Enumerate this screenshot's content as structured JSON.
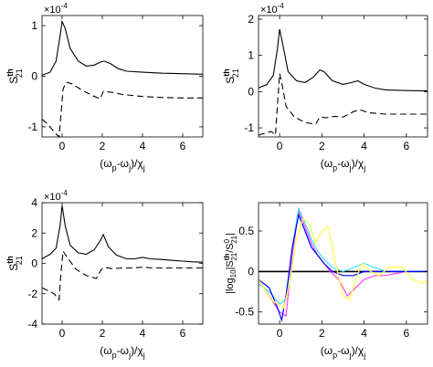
{
  "chart_data": [
    {
      "type": "line",
      "panel": "top-left",
      "ylabel_main": "S",
      "ylabel_sup": "th",
      "ylabel_sub": "21",
      "xlabel_parts": [
        "(ω",
        "p",
        "-ω",
        "j",
        ")/χ",
        "j"
      ],
      "multiplier_base": "×10",
      "multiplier_exp": "-4",
      "xlim": [
        -1,
        7
      ],
      "ylim": [
        -1.2,
        1.2
      ],
      "xticks": [
        0,
        2,
        4,
        6
      ],
      "xtick_labels": [
        "0",
        "2",
        "4",
        "6"
      ],
      "yticks": [
        -1,
        0,
        1
      ],
      "ytick_labels": [
        "-1",
        "0",
        "1"
      ],
      "series": [
        {
          "style": "solid",
          "x": [
            -1,
            -0.6,
            -0.3,
            -0.1,
            0,
            0.15,
            0.4,
            0.8,
            1.2,
            1.6,
            1.9,
            2.1,
            2.4,
            2.8,
            3.2,
            4,
            5,
            6,
            7
          ],
          "y": [
            0.02,
            0.08,
            0.3,
            0.8,
            1.08,
            0.95,
            0.55,
            0.3,
            0.2,
            0.22,
            0.28,
            0.3,
            0.25,
            0.15,
            0.1,
            0.08,
            0.06,
            0.05,
            0.04
          ]
        },
        {
          "style": "dashed",
          "x": [
            -1,
            -0.7,
            -0.4,
            -0.15,
            0.05,
            0.2,
            0.5,
            1,
            1.5,
            1.9,
            2.05,
            2.5,
            3,
            4,
            5,
            6,
            7
          ],
          "y": [
            -0.85,
            -0.95,
            -1.1,
            -1.2,
            -0.25,
            -0.12,
            -0.15,
            -0.28,
            -0.38,
            -0.45,
            -0.3,
            -0.32,
            -0.36,
            -0.4,
            -0.42,
            -0.43,
            -0.43
          ]
        }
      ]
    },
    {
      "type": "line",
      "panel": "top-right",
      "ylabel_main": "S",
      "ylabel_sup": "th",
      "ylabel_sub": "21",
      "xlabel_parts": [
        "(ω",
        "p",
        "-ω",
        "j",
        ")/χ",
        "j"
      ],
      "multiplier_base": "×10",
      "multiplier_exp": "-4",
      "xlim": [
        -1,
        7
      ],
      "ylim": [
        -1.25,
        2.1
      ],
      "xticks": [
        0,
        2,
        4,
        6
      ],
      "xtick_labels": [
        "0",
        "2",
        "4",
        "6"
      ],
      "yticks": [
        -1,
        0,
        1,
        2
      ],
      "ytick_labels": [
        "-1",
        "0",
        "1",
        "2"
      ],
      "series": [
        {
          "style": "solid",
          "x": [
            -1,
            -0.6,
            -0.3,
            -0.1,
            0,
            0.15,
            0.4,
            0.8,
            1.2,
            1.6,
            1.9,
            2.1,
            2.5,
            3,
            3.4,
            3.7,
            4,
            4.5,
            5,
            6,
            7
          ],
          "y": [
            0.1,
            0.2,
            0.45,
            1.2,
            1.72,
            1.3,
            0.55,
            0.3,
            0.25,
            0.4,
            0.6,
            0.55,
            0.3,
            0.2,
            0.25,
            0.3,
            0.2,
            0.1,
            0.05,
            0.03,
            0.02
          ]
        },
        {
          "style": "dashed",
          "x": [
            -1,
            -0.7,
            -0.4,
            -0.2,
            0,
            0.1,
            0.3,
            0.7,
            1.2,
            1.7,
            1.9,
            2.2,
            2.6,
            3,
            3.5,
            3.8,
            4.2,
            5,
            6,
            7
          ],
          "y": [
            -1.2,
            -1.15,
            -1.1,
            -1.2,
            0.5,
            0.25,
            -0.4,
            -0.7,
            -0.85,
            -0.9,
            -0.7,
            -0.72,
            -0.68,
            -0.7,
            -0.55,
            -0.5,
            -0.58,
            -0.62,
            -0.62,
            -0.62
          ]
        }
      ]
    },
    {
      "type": "line",
      "panel": "bottom-left",
      "ylabel_main": "S",
      "ylabel_sup": "th",
      "ylabel_sub": "21",
      "xlabel_parts": [
        "(ω",
        "p",
        "-ω",
        "j",
        ")/χ",
        "j"
      ],
      "multiplier_base": "×10",
      "multiplier_exp": "-4",
      "xlim": [
        -1,
        7
      ],
      "ylim": [
        -4,
        4
      ],
      "xticks": [
        0,
        2,
        4,
        6
      ],
      "xtick_labels": [
        "0",
        "2",
        "4",
        "6"
      ],
      "yticks": [
        -4,
        -2,
        0,
        2,
        4
      ],
      "ytick_labels": [
        "-4",
        "-2",
        "0",
        "2",
        "4"
      ],
      "series": [
        {
          "style": "solid",
          "x": [
            -1,
            -0.6,
            -0.3,
            -0.1,
            0,
            0.15,
            0.4,
            0.8,
            1.2,
            1.6,
            1.9,
            2.05,
            2.3,
            2.7,
            3.2,
            3.6,
            4,
            4.4,
            5,
            5.5,
            6,
            6.5,
            7
          ],
          "y": [
            0.3,
            0.6,
            1.0,
            2.5,
            3.8,
            2.5,
            1.2,
            0.7,
            0.6,
            0.9,
            1.5,
            1.9,
            1.1,
            0.55,
            0.3,
            0.3,
            0.4,
            0.3,
            0.25,
            0.2,
            0.15,
            0.1,
            0.08
          ]
        },
        {
          "style": "dashed",
          "x": [
            -1,
            -0.7,
            -0.4,
            -0.15,
            -0.05,
            0.05,
            0.3,
            0.7,
            1.2,
            1.7,
            1.95,
            2.1,
            2.5,
            3,
            3.5,
            4,
            4.5,
            5,
            6,
            7
          ],
          "y": [
            -1.6,
            -1.8,
            -2.0,
            -2.4,
            -0.5,
            0.8,
            0.3,
            -0.4,
            -0.8,
            -1.0,
            -0.4,
            -0.25,
            -0.35,
            -0.3,
            -0.3,
            -0.25,
            -0.3,
            -0.3,
            -0.3,
            -0.3
          ]
        }
      ]
    },
    {
      "type": "line",
      "panel": "bottom-right",
      "ylabel_parts": [
        "|log",
        "10",
        "|S",
        "th",
        "21",
        "/S",
        "0",
        "21",
        "|"
      ],
      "xlabel_parts": [
        "(ω",
        "p",
        "-ω",
        "j",
        ")/χ",
        "j"
      ],
      "xlim": [
        -1,
        7
      ],
      "ylim": [
        -0.65,
        0.85
      ],
      "xticks": [
        0,
        2,
        4,
        6
      ],
      "xtick_labels": [
        "0",
        "2",
        "4",
        "6"
      ],
      "yticks": [
        -0.5,
        0,
        0.5
      ],
      "ytick_labels": [
        "-0.5",
        "0",
        "0.5"
      ],
      "series": [
        {
          "style": "zero-line",
          "color": "#000000",
          "x": [
            -1,
            7
          ],
          "y": [
            0,
            0
          ]
        },
        {
          "color": "#ff40ff",
          "x": [
            -1,
            -0.5,
            0,
            0.3,
            0.6,
            0.9,
            1.2,
            1.5,
            1.8,
            2.1,
            2.4,
            2.8,
            3.2,
            3.6,
            4,
            4.5,
            5,
            6,
            7
          ],
          "y": [
            -0.1,
            -0.3,
            -0.5,
            -0.55,
            0.2,
            0.75,
            0.55,
            0.35,
            0.2,
            0.1,
            0,
            -0.1,
            -0.3,
            -0.2,
            -0.1,
            -0.05,
            -0.05,
            0,
            0
          ]
        },
        {
          "color": "#40e0ff",
          "x": [
            -1,
            -0.5,
            0,
            0.3,
            0.6,
            0.9,
            1.2,
            1.5,
            1.8,
            2.1,
            2.5,
            3,
            3.5,
            4,
            4.5,
            5,
            6,
            7
          ],
          "y": [
            -0.15,
            -0.25,
            -0.4,
            -0.35,
            0.3,
            0.78,
            0.6,
            0.4,
            0.25,
            0.15,
            0.05,
            0,
            0.05,
            0.1,
            0.05,
            0,
            0,
            0
          ]
        },
        {
          "color": "#0000ff",
          "x": [
            -1,
            -0.5,
            -0.1,
            0.1,
            0.3,
            0.6,
            0.9,
            1.2,
            1.5,
            1.8,
            2.1,
            2.5,
            3,
            3.5,
            4,
            5,
            6,
            7
          ],
          "y": [
            -0.1,
            -0.2,
            -0.45,
            -0.6,
            -0.3,
            0.3,
            0.7,
            0.5,
            0.3,
            0.2,
            0.1,
            0,
            -0.05,
            -0.05,
            0,
            0,
            0,
            0
          ]
        },
        {
          "color": "#ffff40",
          "x": [
            -1,
            -0.4,
            0.2,
            0.5,
            0.8,
            1.1,
            1.4,
            1.7,
            2.0,
            2.3,
            2.6,
            3,
            3.3,
            3.6,
            3.9,
            4.3,
            4.7,
            5.2,
            5.8,
            6.3,
            6.8,
            7
          ],
          "y": [
            -0.1,
            -0.35,
            -0.45,
            -0.1,
            0.4,
            0.65,
            0.6,
            0.35,
            0.5,
            0.55,
            0.15,
            -0.3,
            -0.35,
            -0.1,
            0.1,
            0.0,
            -0.05,
            0.05,
            0.05,
            -0.1,
            -0.15,
            -0.1
          ]
        }
      ]
    }
  ]
}
